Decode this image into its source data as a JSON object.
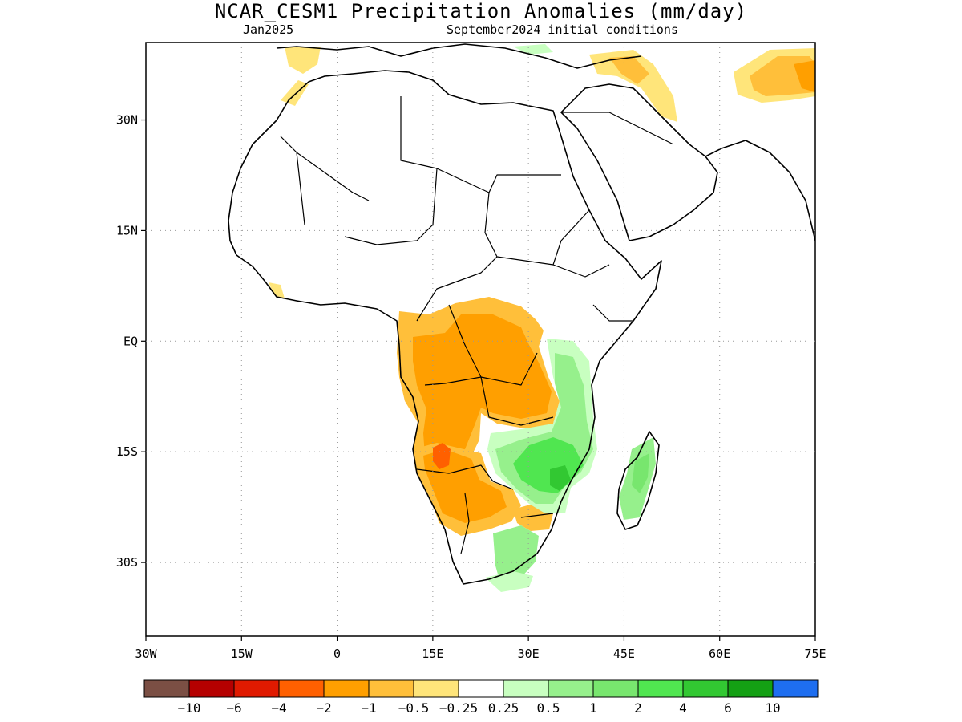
{
  "title": "NCAR_CESM1 Precipitation Anomalies (mm/day)",
  "subtitle_left": "Jan2025",
  "subtitle_right": "September2024 initial conditions",
  "map": {
    "lon_range": [
      -30,
      75
    ],
    "lat_range": [
      -40,
      40.5
    ],
    "lon_ticks": [
      {
        "lon": -30,
        "label": "30W"
      },
      {
        "lon": -15,
        "label": "15W"
      },
      {
        "lon": 0,
        "label": "0"
      },
      {
        "lon": 15,
        "label": "15E"
      },
      {
        "lon": 30,
        "label": "30E"
      },
      {
        "lon": 45,
        "label": "45E"
      },
      {
        "lon": 60,
        "label": "60E"
      },
      {
        "lon": 75,
        "label": "75E"
      }
    ],
    "lat_ticks": [
      {
        "lat": 30,
        "label": "30N"
      },
      {
        "lat": 15,
        "label": "15N"
      },
      {
        "lat": 0,
        "label": "EQ"
      },
      {
        "lat": -15,
        "label": "15S"
      },
      {
        "lat": -30,
        "label": "30S"
      }
    ],
    "grid": "dotted"
  },
  "colorbar": {
    "colors": [
      "#7b4f44",
      "#b50000",
      "#e01a00",
      "#ff6000",
      "#ff9f00",
      "#ffbf3a",
      "#ffe57a",
      "#ffffff",
      "#c8ffc0",
      "#96f08c",
      "#78e66e",
      "#50e650",
      "#32c832",
      "#14a014",
      "#1e6ef0"
    ],
    "labels": [
      "-10",
      "-6",
      "-4",
      "-2",
      "-1",
      "-0.5",
      "-0.25",
      "0.25",
      "0.5",
      "1",
      "2",
      "4",
      "6",
      "10"
    ]
  }
}
